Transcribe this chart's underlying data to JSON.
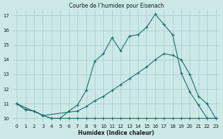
{
  "title": "Courbe de l’humidex pour Eisenach",
  "xlabel": "Humidex (Indice chaleur)",
  "xlim": [
    -0.5,
    23.5
  ],
  "ylim": [
    9.8,
    17.4
  ],
  "yticks": [
    10,
    11,
    12,
    13,
    14,
    15,
    16,
    17
  ],
  "xticks": [
    0,
    1,
    2,
    3,
    4,
    5,
    6,
    7,
    8,
    9,
    10,
    11,
    12,
    13,
    14,
    15,
    16,
    17,
    18,
    19,
    20,
    21,
    22,
    23
  ],
  "bg_color": "#cce9e8",
  "grid_color": "#aacfce",
  "line_color": "#1a6b6b",
  "line1_x": [
    0,
    1,
    2,
    3,
    4,
    5,
    6,
    7,
    8,
    9,
    10,
    11,
    12,
    13,
    14,
    15,
    16,
    17,
    18,
    19,
    20,
    21,
    22,
    23
  ],
  "line1_y": [
    11.0,
    10.6,
    10.5,
    10.2,
    10.0,
    10.0,
    10.5,
    10.9,
    11.9,
    13.9,
    14.4,
    15.5,
    14.6,
    15.6,
    15.7,
    16.2,
    17.1,
    16.4,
    15.7,
    13.1,
    11.8,
    10.9,
    10.0,
    10.0
  ],
  "line2_x": [
    0,
    3,
    7,
    8,
    9,
    10,
    11,
    12,
    13,
    14,
    15,
    16,
    17,
    18,
    19,
    20,
    21,
    22,
    23
  ],
  "line2_y": [
    11.0,
    10.2,
    10.5,
    10.8,
    11.2,
    11.5,
    11.9,
    12.3,
    12.7,
    13.1,
    13.5,
    14.0,
    14.4,
    14.3,
    14.0,
    13.0,
    11.5,
    11.0,
    10.0
  ],
  "line3_x": [
    0,
    1,
    2,
    3,
    4,
    5,
    6,
    7,
    8,
    9,
    10,
    11,
    12,
    13,
    14,
    15,
    16,
    17,
    18,
    19,
    20,
    21,
    22,
    23
  ],
  "line3_y": [
    11.0,
    10.6,
    10.5,
    10.2,
    10.0,
    10.0,
    10.0,
    10.0,
    10.0,
    10.0,
    10.0,
    10.0,
    10.0,
    10.0,
    10.0,
    10.0,
    10.0,
    10.0,
    10.0,
    10.0,
    10.0,
    10.0,
    10.0,
    10.0
  ]
}
